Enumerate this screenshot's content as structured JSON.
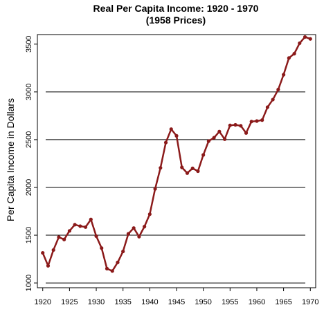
{
  "chart_data": {
    "type": "line",
    "title": "Real Per Capita Income: 1920 - 1970",
    "subtitle": "(1958 Prices)",
    "xlabel": "",
    "ylabel": "Per Capita Income in Dollars",
    "xlim": [
      1919,
      1971
    ],
    "ylim": [
      950,
      3600
    ],
    "x_ticks": [
      1920,
      1925,
      1930,
      1935,
      1940,
      1945,
      1950,
      1955,
      1960,
      1965,
      1970
    ],
    "y_ticks": [
      1000,
      1500,
      2000,
      2500,
      3000,
      3500
    ],
    "gridlines_y": [
      1000,
      1500,
      2000,
      2500,
      3000
    ],
    "grid": "horizontal",
    "line_color": "#8b1a1a",
    "series": [
      {
        "x": [
          1920,
          1921,
          1922,
          1923,
          1924,
          1925,
          1926,
          1927,
          1928,
          1929,
          1930,
          1931,
          1932,
          1933,
          1934,
          1935,
          1936,
          1937,
          1938,
          1939,
          1940,
          1941,
          1942,
          1943,
          1944,
          1945,
          1946,
          1947,
          1948,
          1949,
          1950,
          1951,
          1952,
          1953,
          1954,
          1955,
          1956,
          1957,
          1958,
          1959,
          1960,
          1961,
          1962,
          1963,
          1964,
          1965,
          1966,
          1967,
          1968,
          1969,
          1970
        ],
        "values": [
          1315,
          1180,
          1345,
          1480,
          1455,
          1545,
          1610,
          1595,
          1585,
          1665,
          1490,
          1365,
          1150,
          1125,
          1215,
          1330,
          1515,
          1575,
          1485,
          1590,
          1720,
          1985,
          2205,
          2470,
          2610,
          2540,
          2210,
          2150,
          2200,
          2170,
          2340,
          2485,
          2520,
          2585,
          2505,
          2650,
          2655,
          2645,
          2570,
          2690,
          2695,
          2705,
          2840,
          2920,
          3025,
          3180,
          3355,
          3400,
          3510,
          3575,
          3555
        ]
      }
    ]
  }
}
